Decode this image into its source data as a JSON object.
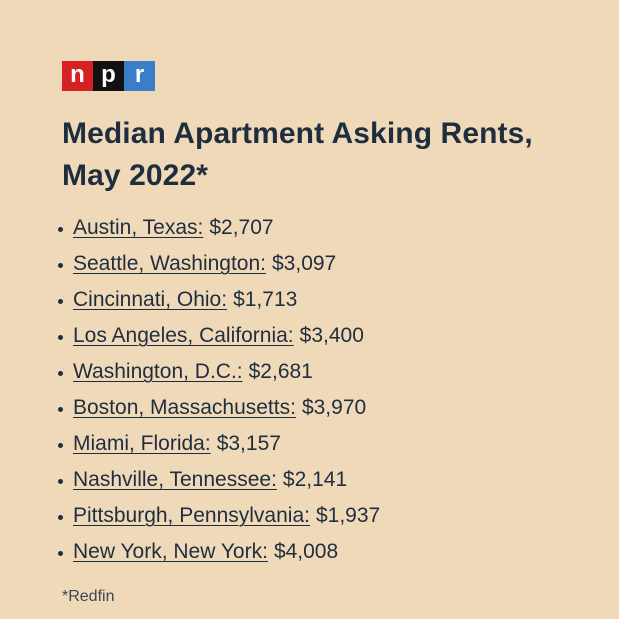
{
  "logo": {
    "letters": [
      "n",
      "p",
      "r"
    ]
  },
  "title_line1": "Median Apartment Asking Rents,",
  "title_line2": "May 2022*",
  "items": [
    {
      "city": "Austin, Texas:",
      "rent": "$2,707"
    },
    {
      "city": "Seattle, Washington:",
      "rent": "$3,097"
    },
    {
      "city": "Cincinnati, Ohio:",
      "rent": "$1,713"
    },
    {
      "city": "Los Angeles, California:",
      "rent": "$3,400"
    },
    {
      "city": "Washington, D.C.:",
      "rent": "$2,681"
    },
    {
      "city": "Boston, Massachusetts:",
      "rent": "$3,970"
    },
    {
      "city": "Miami, Florida:",
      "rent": "$3,157"
    },
    {
      "city": "Nashville, Tennessee:",
      "rent": "$2,141"
    },
    {
      "city": "Pittsburgh, Pennsylvania:",
      "rent": "$1,937"
    },
    {
      "city": "New York, New York:",
      "rent": "$4,008"
    }
  ],
  "footnote": "*Redfin",
  "colors": {
    "background": "#efd9b9",
    "text": "#1f2e3f",
    "logo_n": "#d62021",
    "logo_p": "#111111",
    "logo_r": "#3a7dc9"
  }
}
